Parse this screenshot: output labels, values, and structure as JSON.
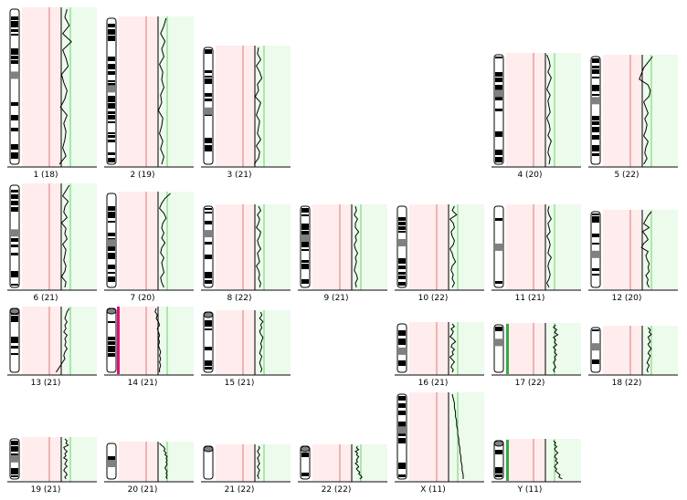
{
  "colors": {
    "loss_zone": "#ffecec",
    "gain_zone": "#ecfbec",
    "loss_line": "#e07878",
    "gain_line": "#66d466",
    "center_line": "#000000",
    "profile": "#000000",
    "baseline": "#000000",
    "band_dark": "#000000",
    "band_light": "#ffffff",
    "centromere": "#808080",
    "gain_marker": "#33aa44",
    "loss_marker": "#dd1177"
  },
  "chromosomes": [
    {
      "id": "1",
      "label": "1 (18)",
      "profile": [
        0.02,
        0.0,
        0.04,
        -0.02,
        0.06,
        -0.02,
        0.01,
        0.03,
        -0.03,
        -0.01,
        0.02,
        0.0,
        -0.04,
        0.02,
        -0.01,
        0.01,
        0.0,
        -0.02,
        0.01,
        -0.05
      ]
    },
    {
      "id": "2",
      "label": "2 (19)",
      "profile": [
        0.04,
        0.02,
        -0.01,
        0.03,
        0.0,
        0.02,
        -0.02,
        0.01,
        0.0,
        0.02,
        -0.01,
        0.0,
        -0.03,
        0.01,
        0.0,
        -0.02,
        0.01,
        -0.01,
        0.02,
        0.0
      ]
    },
    {
      "id": "3",
      "label": "3 (21)",
      "profile": [
        0.0,
        -0.01,
        0.02,
        -0.02,
        0.01,
        0.03,
        -0.01,
        0.0,
        -0.03,
        0.02,
        0.0,
        -0.02,
        0.01,
        0.0,
        -0.01,
        0.02,
        -0.02,
        0.01,
        0.0,
        -0.04
      ]
    },
    {
      "id": "4",
      "label": "4 (20)",
      "profile": [
        -0.02,
        0.0,
        0.01,
        -0.01,
        0.02,
        0.0,
        -0.02,
        0.01,
        -0.01,
        0.0,
        0.01,
        -0.02,
        0.0,
        0.01,
        -0.01,
        0.02,
        0.0,
        -0.01,
        0.01,
        0.0
      ]
    },
    {
      "id": "5",
      "label": "5 (22)",
      "profile": [
        0.06,
        0.02,
        -0.02,
        -0.04,
        -0.06,
        0.02,
        0.04,
        0.03,
        -0.02,
        0.0,
        0.02,
        -0.01,
        0.01,
        0.0,
        -0.02,
        0.02,
        0.0,
        -0.01,
        0.01,
        -0.02
      ]
    },
    {
      "id": "6",
      "label": "6 (21)",
      "profile": [
        0.04,
        0.01,
        -0.02,
        0.03,
        0.0,
        -0.01,
        0.02,
        -0.03,
        0.01,
        0.0,
        0.02,
        -0.02,
        0.01,
        0.0,
        -0.01,
        0.01,
        0.0,
        -0.03,
        0.01,
        0.0
      ]
    },
    {
      "id": "7",
      "label": "7 (20)",
      "profile": [
        0.08,
        0.03,
        0.0,
        -0.02,
        0.02,
        0.04,
        0.01,
        0.0,
        0.02,
        0.0,
        0.03,
        0.0,
        -0.01,
        0.02,
        0.0,
        0.01,
        0.02,
        -0.01,
        0.0,
        0.02
      ]
    },
    {
      "id": "8",
      "label": "8 (22)",
      "profile": [
        0.0,
        0.02,
        -0.01,
        0.01,
        0.0,
        -0.02,
        0.02,
        0.01,
        -0.01,
        0.0,
        0.02,
        -0.01,
        0.0,
        0.01,
        -0.02,
        0.0,
        0.01,
        0.0,
        0.02,
        0.01
      ]
    },
    {
      "id": "9",
      "label": "9 (21)",
      "profile": [
        0.0,
        0.01,
        -0.01,
        0.02,
        0.0,
        0.0,
        0.03,
        0.0,
        0.01,
        -0.01,
        0.0,
        0.02,
        0.0,
        0.01,
        0.0,
        -0.01,
        0.01,
        0.02,
        0.0,
        0.01
      ]
    },
    {
      "id": "10",
      "label": "10 (22)",
      "profile": [
        0.02,
        0.0,
        0.04,
        -0.02,
        0.01,
        0.02,
        -0.01,
        0.0,
        0.02,
        0.01,
        -0.02,
        0.0,
        0.01,
        0.03,
        0.0,
        -0.01,
        0.01,
        0.0,
        0.02,
        0.0
      ]
    },
    {
      "id": "11",
      "label": "11 (21)",
      "profile": [
        0.0,
        -0.01,
        0.0,
        0.02,
        -0.01,
        0.0,
        0.01,
        -0.02,
        0.0,
        0.01,
        0.0,
        -0.01,
        0.02,
        0.0,
        -0.01,
        0.0,
        0.01,
        0.0,
        -0.02,
        0.0
      ]
    },
    {
      "id": "12",
      "label": "12 (20)",
      "profile": [
        0.05,
        0.02,
        0.0,
        -0.02,
        0.03,
        -0.03,
        0.0,
        0.02,
        -0.02,
        -0.04,
        0.02,
        0.0,
        0.01,
        0.03,
        0.02,
        0.03,
        0.0,
        0.02,
        0.01,
        0.03
      ]
    },
    {
      "id": "13",
      "label": "13 (21)",
      "profile": [
        0.04,
        0.02,
        0.01,
        0.0,
        0.02,
        0.0,
        0.01,
        -0.01,
        0.02,
        0.0,
        0.01,
        0.0,
        0.02,
        0.0,
        -0.01,
        0.0,
        -0.02,
        -0.04,
        -0.06,
        -0.08
      ]
    },
    {
      "id": "14",
      "label": "14 (21)",
      "profile": [
        -0.05,
        -0.06,
        -0.04,
        -0.05,
        -0.03,
        -0.02,
        -0.04,
        -0.03,
        -0.02,
        -0.03,
        -0.02,
        -0.03,
        -0.02,
        -0.01,
        -0.02,
        -0.01,
        -0.02,
        -0.01,
        -0.02,
        -0.02
      ]
    },
    {
      "id": "15",
      "label": "15 (21)",
      "profile": [
        0.02,
        0.03,
        0.01,
        0.04,
        0.02,
        0.03,
        0.01,
        0.02,
        0.04,
        0.03,
        0.02,
        0.03,
        0.02,
        0.01,
        0.03,
        0.02,
        0.01,
        0.02,
        0.03,
        0.02
      ]
    },
    {
      "id": "16",
      "label": "16 (21)",
      "profile": [
        0.0,
        0.02,
        -0.01,
        0.01,
        0.0,
        -0.02,
        0.01,
        0.03,
        0.0,
        -0.01,
        0.02,
        0.0,
        0.01,
        -0.02,
        0.0,
        0.02,
        0.0,
        -0.01,
        0.01,
        0.0
      ]
    },
    {
      "id": "17",
      "label": "17 (22)",
      "profile": [
        0.06,
        0.04,
        0.07,
        0.05,
        0.08,
        0.04,
        0.06,
        0.05,
        0.07,
        0.04,
        0.06,
        0.05,
        0.07,
        0.05,
        0.06,
        0.04,
        0.05,
        0.06,
        0.04,
        0.05
      ]
    },
    {
      "id": "18",
      "label": "18 (22)",
      "profile": [
        0.02,
        0.04,
        0.03,
        0.05,
        0.02,
        0.03,
        0.04,
        0.02,
        0.03,
        0.05,
        0.03,
        0.02,
        0.04,
        0.03,
        0.02,
        0.01,
        0.03,
        0.02,
        0.01,
        0.02
      ]
    },
    {
      "id": "19",
      "label": "19 (21)",
      "profile": [
        0.0,
        0.02,
        0.01,
        0.03,
        -0.01,
        0.0,
        0.02,
        0.0,
        0.01,
        -0.01,
        0.02,
        0.01,
        0.0,
        0.02,
        0.0,
        -0.01,
        0.01,
        0.02,
        0.0,
        0.01
      ]
    },
    {
      "id": "20",
      "label": "20 (21)",
      "profile": [
        -0.02,
        0.0,
        0.02,
        0.03,
        0.02,
        0.04,
        0.03,
        0.05,
        0.04,
        0.05,
        0.04,
        0.05,
        0.04,
        0.03,
        0.04,
        0.05,
        0.04,
        0.05,
        0.04,
        0.05
      ]
    },
    {
      "id": "21",
      "label": "21 (22)",
      "profile": [
        0.0,
        0.01,
        0.0,
        -0.01,
        0.0,
        0.01,
        0.0,
        -0.01,
        0.0,
        0.0,
        0.01,
        0.0,
        -0.01,
        0.0,
        0.01,
        0.0,
        0.0,
        -0.01,
        0.0,
        0.0
      ]
    },
    {
      "id": "22",
      "label": "22 (22)",
      "profile": [
        0.02,
        0.01,
        0.03,
        0.0,
        0.02,
        0.01,
        0.03,
        0.02,
        0.01,
        0.02,
        0.0,
        0.02,
        0.03,
        0.01,
        0.02,
        0.04,
        0.03,
        0.05,
        0.06,
        0.04
      ]
    },
    {
      "id": "X",
      "label": "X (11)",
      "profile": [
        0.0,
        0.01,
        0.02,
        0.02,
        0.03,
        0.03,
        0.04,
        0.04,
        0.05,
        0.05,
        0.06,
        0.06,
        0.07,
        0.07,
        0.08,
        0.08,
        0.09,
        0.09,
        0.1,
        0.1
      ]
    },
    {
      "id": "Y",
      "label": "Y (11)",
      "profile": [
        0.04,
        0.06,
        0.05,
        0.07,
        0.05,
        0.06,
        0.08,
        0.06,
        0.05,
        0.07,
        0.06,
        0.08,
        0.06,
        0.05,
        0.07,
        0.06,
        0.08,
        0.1,
        0.09,
        0.12
      ]
    }
  ]
}
